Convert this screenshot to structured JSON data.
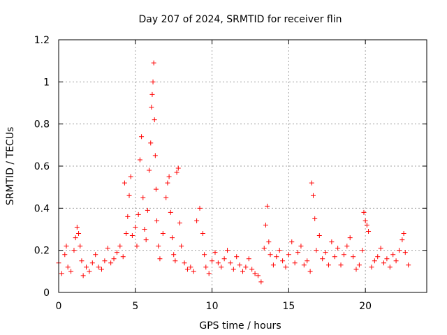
{
  "chart_data": {
    "type": "scatter",
    "title": "Day 207 of 2024, SRMTID for receiver flin",
    "xlabel": "GPS time / hours",
    "ylabel": "SRMTID / TECUs",
    "xlim": [
      0,
      24
    ],
    "ylim": [
      0,
      1.2
    ],
    "xticks": [
      0,
      5,
      10,
      15,
      20
    ],
    "xtick_labels": [
      "0",
      "5",
      "10",
      "15",
      "20"
    ],
    "yticks": [
      0,
      0.2,
      0.4,
      0.6,
      0.8,
      1.0,
      1.2
    ],
    "ytick_labels": [
      "0",
      "0.2",
      "0.4",
      "0.6",
      "0.8",
      "1",
      "1.2"
    ],
    "grid": true,
    "marker": "+",
    "series": [
      {
        "name": "SRMTID",
        "color": "#ff0000",
        "x": [
          0.0,
          0.2,
          0.4,
          0.5,
          0.6,
          0.8,
          1.0,
          1.1,
          1.2,
          1.3,
          1.4,
          1.5,
          1.6,
          1.8,
          2.0,
          2.2,
          2.4,
          2.6,
          2.8,
          3.0,
          3.2,
          3.4,
          3.6,
          3.8,
          4.0,
          4.2,
          4.3,
          4.4,
          4.5,
          4.6,
          4.7,
          4.8,
          5.0,
          5.1,
          5.2,
          5.3,
          5.4,
          5.5,
          5.6,
          5.7,
          5.8,
          5.9,
          6.0,
          6.05,
          6.1,
          6.15,
          6.2,
          6.25,
          6.3,
          6.35,
          6.4,
          6.5,
          6.6,
          6.8,
          7.0,
          7.1,
          7.2,
          7.3,
          7.4,
          7.5,
          7.6,
          7.7,
          7.8,
          7.9,
          8.0,
          8.2,
          8.4,
          8.6,
          8.8,
          9.0,
          9.2,
          9.4,
          9.5,
          9.6,
          9.8,
          10.0,
          10.2,
          10.4,
          10.6,
          10.8,
          11.0,
          11.2,
          11.4,
          11.6,
          11.8,
          12.0,
          12.2,
          12.4,
          12.6,
          12.8,
          13.0,
          13.2,
          13.4,
          13.5,
          13.6,
          13.7,
          13.8,
          14.0,
          14.2,
          14.4,
          14.6,
          14.8,
          15.0,
          15.2,
          15.4,
          15.6,
          15.8,
          16.0,
          16.2,
          16.4,
          16.5,
          16.6,
          16.7,
          16.8,
          17.0,
          17.2,
          17.4,
          17.6,
          17.8,
          18.0,
          18.2,
          18.4,
          18.6,
          18.8,
          19.0,
          19.2,
          19.4,
          19.6,
          19.8,
          19.9,
          20.0,
          20.1,
          20.2,
          20.4,
          20.6,
          20.8,
          21.0,
          21.2,
          21.4,
          21.6,
          21.8,
          22.0,
          22.2,
          22.4,
          22.5,
          22.6,
          22.8
        ],
        "y": [
          0.14,
          0.09,
          0.18,
          0.22,
          0.12,
          0.1,
          0.2,
          0.26,
          0.31,
          0.28,
          0.22,
          0.15,
          0.08,
          0.12,
          0.1,
          0.14,
          0.18,
          0.12,
          0.11,
          0.15,
          0.21,
          0.14,
          0.16,
          0.19,
          0.22,
          0.17,
          0.52,
          0.28,
          0.36,
          0.46,
          0.55,
          0.27,
          0.31,
          0.22,
          0.37,
          0.63,
          0.74,
          0.45,
          0.3,
          0.25,
          0.39,
          0.58,
          0.71,
          0.88,
          0.94,
          1.0,
          1.09,
          0.82,
          0.65,
          0.49,
          0.34,
          0.22,
          0.16,
          0.28,
          0.45,
          0.52,
          0.55,
          0.38,
          0.26,
          0.18,
          0.15,
          0.57,
          0.59,
          0.33,
          0.22,
          0.14,
          0.11,
          0.12,
          0.1,
          0.34,
          0.4,
          0.28,
          0.18,
          0.12,
          0.09,
          0.15,
          0.19,
          0.14,
          0.12,
          0.16,
          0.2,
          0.14,
          0.11,
          0.17,
          0.13,
          0.1,
          0.12,
          0.16,
          0.11,
          0.09,
          0.08,
          0.05,
          0.21,
          0.32,
          0.41,
          0.24,
          0.18,
          0.13,
          0.17,
          0.2,
          0.15,
          0.12,
          0.18,
          0.24,
          0.14,
          0.19,
          0.22,
          0.13,
          0.15,
          0.1,
          0.52,
          0.46,
          0.35,
          0.2,
          0.27,
          0.16,
          0.19,
          0.13,
          0.24,
          0.17,
          0.21,
          0.13,
          0.18,
          0.22,
          0.26,
          0.17,
          0.11,
          0.13,
          0.2,
          0.38,
          0.34,
          0.32,
          0.29,
          0.12,
          0.15,
          0.17,
          0.21,
          0.14,
          0.16,
          0.12,
          0.18,
          0.15,
          0.2,
          0.25,
          0.28,
          0.19,
          0.13
        ]
      }
    ]
  }
}
